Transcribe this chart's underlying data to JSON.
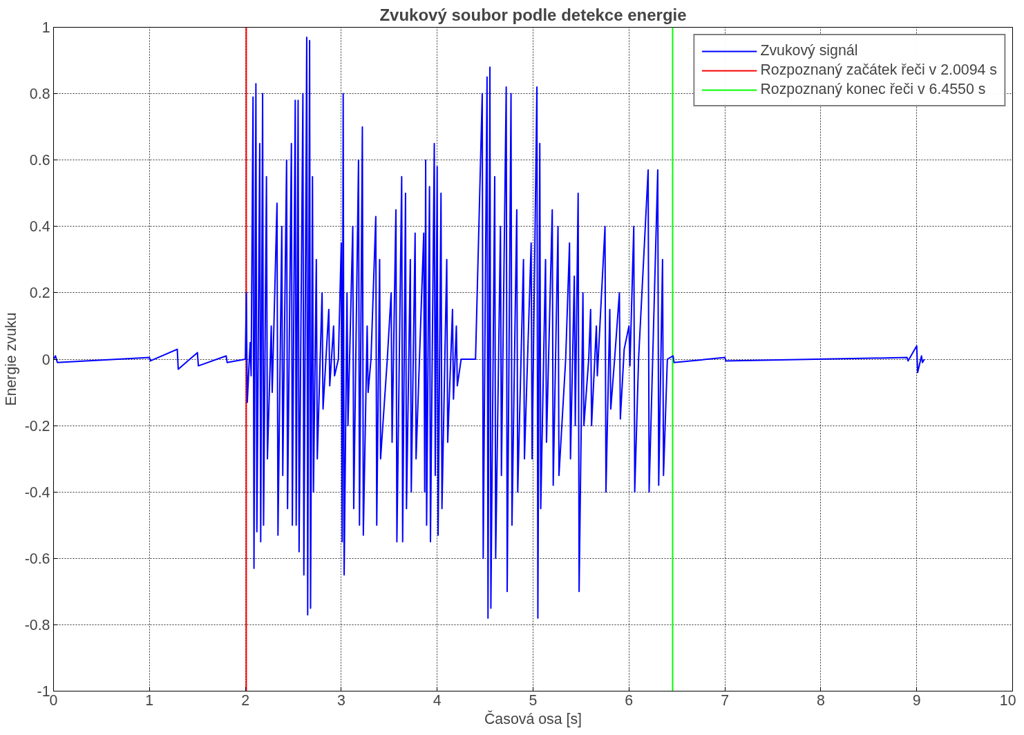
{
  "chart_data": {
    "type": "line",
    "title": "Zvukový soubor podle detekce energie",
    "xlabel": "Časová osa [s]",
    "ylabel": "Energie zvuku",
    "xlim": [
      0,
      10
    ],
    "ylim": [
      -1,
      1
    ],
    "xticks": [
      0,
      1,
      2,
      3,
      4,
      5,
      6,
      7,
      8,
      9,
      10
    ],
    "yticks": [
      -1,
      -0.8,
      -0.6,
      -0.4,
      -0.2,
      0,
      0.2,
      0.4,
      0.6,
      0.8,
      1
    ],
    "grid": true,
    "legend": "top right",
    "line_style": "solid",
    "series": [
      {
        "name": "Zvukový signál",
        "color": "#0000ff",
        "x": [
          0.0,
          0.02,
          0.04,
          1.0,
          1.01,
          1.29,
          1.3,
          1.5,
          1.51,
          1.8,
          1.81,
          2.0,
          2.01,
          2.02,
          2.05,
          2.06,
          2.08,
          2.09,
          2.11,
          2.12,
          2.15,
          2.16,
          2.18,
          2.19,
          2.22,
          2.23,
          2.27,
          2.28,
          2.33,
          2.34,
          2.38,
          2.39,
          2.43,
          2.44,
          2.48,
          2.49,
          2.52,
          2.53,
          2.55,
          2.56,
          2.6,
          2.61,
          2.64,
          2.65,
          2.67,
          2.68,
          2.7,
          2.71,
          2.74,
          2.75,
          2.8,
          2.81,
          2.87,
          2.88,
          2.92,
          2.93,
          2.97,
          3.0,
          3.01,
          3.02,
          3.03,
          3.06,
          3.07,
          3.12,
          3.13,
          3.18,
          3.19,
          3.22,
          3.23,
          3.27,
          3.28,
          3.31,
          3.36,
          3.37,
          3.4,
          3.41,
          3.48,
          3.52,
          3.53,
          3.57,
          3.58,
          3.63,
          3.64,
          3.67,
          3.68,
          3.72,
          3.73,
          3.77,
          3.78,
          3.86,
          3.87,
          3.88,
          3.89,
          3.92,
          3.93,
          3.97,
          3.98,
          4.0,
          4.01,
          4.04,
          4.05,
          4.1,
          4.11,
          4.16,
          4.17,
          4.2,
          4.21,
          4.25,
          4.4,
          4.47,
          4.48,
          4.52,
          4.53,
          4.55,
          4.56,
          4.6,
          4.61,
          4.66,
          4.67,
          4.72,
          4.73,
          4.77,
          4.78,
          4.83,
          4.84,
          4.9,
          4.91,
          4.98,
          4.99,
          5.04,
          5.05,
          5.07,
          5.08,
          5.13,
          5.14,
          5.2,
          5.21,
          5.26,
          5.27,
          5.34,
          5.38,
          5.39,
          5.43,
          5.44,
          5.47,
          5.48,
          5.52,
          5.53,
          5.58,
          5.6,
          5.61,
          5.66,
          5.67,
          5.75,
          5.76,
          5.8,
          5.81,
          5.85,
          5.9,
          5.91,
          5.95,
          6.0,
          6.01,
          6.05,
          6.06,
          6.1,
          6.2,
          6.21,
          6.3,
          6.31,
          6.35,
          6.36,
          6.4,
          6.46,
          6.47,
          7.0,
          7.01,
          8.9,
          8.91,
          9.0,
          9.01,
          9.05,
          9.06,
          9.08
        ],
        "values": [
          0,
          0.01,
          -0.01,
          0.005,
          -0.005,
          0.03,
          -0.03,
          0.02,
          -0.02,
          0.01,
          -0.01,
          0,
          0.2,
          -0.13,
          0.05,
          -0.05,
          0.79,
          -0.63,
          0.83,
          -0.52,
          0.65,
          -0.55,
          0.8,
          -0.5,
          0.55,
          -0.3,
          0.1,
          -0.1,
          0.47,
          -0.53,
          0.4,
          -0.35,
          0.6,
          -0.45,
          0.65,
          -0.5,
          0.78,
          -0.5,
          0.78,
          -0.58,
          0.8,
          -0.65,
          0.97,
          -0.77,
          0.96,
          -0.75,
          0.55,
          -0.4,
          0.3,
          -0.3,
          0.2,
          -0.15,
          0.15,
          -0.08,
          0.1,
          -0.05,
          0,
          0.35,
          -0.55,
          0.8,
          -0.65,
          0.2,
          -0.2,
          0.4,
          -0.45,
          0.6,
          -0.5,
          0.7,
          -0.53,
          0.1,
          -0.1,
          0,
          0.43,
          -0.5,
          0.3,
          -0.3,
          0,
          0.2,
          -0.25,
          0.45,
          -0.55,
          0.55,
          -0.55,
          0.5,
          -0.45,
          0.3,
          -0.4,
          0.38,
          -0.3,
          0.38,
          -0.4,
          0.6,
          -0.5,
          0.52,
          -0.55,
          0.65,
          -0.35,
          0.58,
          -0.53,
          0.5,
          -0.45,
          0.3,
          -0.25,
          0.15,
          -0.12,
          0.1,
          -0.08,
          0,
          0,
          0.8,
          -0.6,
          0.85,
          -0.78,
          0.88,
          -0.75,
          0.55,
          -0.6,
          0.4,
          -0.35,
          0.82,
          -0.7,
          0.8,
          -0.5,
          0.45,
          -0.4,
          0.3,
          -0.3,
          0.35,
          -0.3,
          0.82,
          -0.78,
          0.65,
          -0.45,
          0.3,
          -0.25,
          0.45,
          -0.38,
          0.4,
          -0.35,
          0,
          0.35,
          -0.3,
          0.25,
          -0.2,
          0.5,
          -0.7,
          0.2,
          -0.2,
          0,
          0.15,
          -0.2,
          0.1,
          -0.05,
          0.4,
          -0.4,
          0.15,
          -0.15,
          0,
          0.2,
          -0.18,
          0.03,
          0.1,
          -0.02,
          0.4,
          -0.4,
          0,
          0.57,
          -0.4,
          0.57,
          -0.38,
          0.3,
          -0.35,
          0,
          0.01,
          -0.01,
          0.005,
          -0.005,
          0.005,
          -0.005,
          0.04,
          -0.04,
          0.01,
          -0.01,
          0
        ]
      },
      {
        "name": "Rozpoznaný začátek řeči v 2.0094 s",
        "color": "#ff0000",
        "x": [
          2.0094,
          2.0094
        ],
        "values": [
          -1,
          1
        ]
      },
      {
        "name": "Rozpoznaný konec řeči v 6.4550 s",
        "color": "#00ff00",
        "x": [
          6.455,
          6.455
        ],
        "values": [
          -1,
          1
        ]
      }
    ]
  }
}
